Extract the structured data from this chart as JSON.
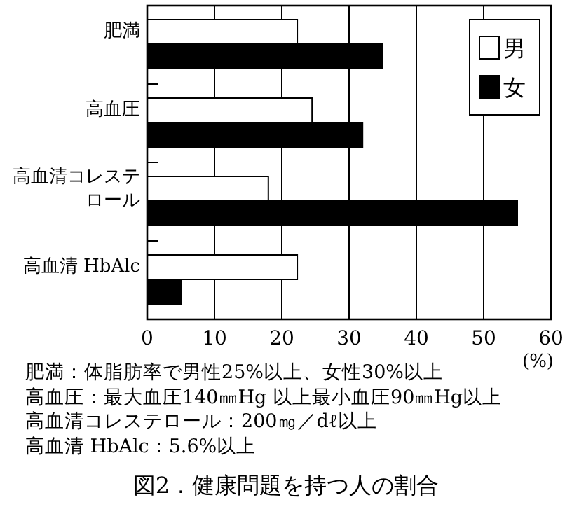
{
  "chart_data": {
    "type": "bar",
    "orientation": "horizontal",
    "title": "図2．健康問題を持つ人の割合",
    "xlabel": "(%)",
    "categories": [
      "肥満",
      "高血圧",
      "高血清コレステロール",
      "高血清 HbAlc"
    ],
    "series": [
      {
        "name": "男",
        "color": "#ffffff",
        "values": [
          22.3,
          24.5,
          18,
          22.3
        ]
      },
      {
        "name": "女",
        "color": "#000000",
        "values": [
          35,
          32,
          55,
          5
        ]
      }
    ],
    "xlim": [
      0,
      60
    ],
    "xticks": [
      0,
      10,
      20,
      30,
      40,
      50,
      60
    ],
    "grid": "x",
    "legend": "top right",
    "annotations": [
      "肥満：体脂肪率で男性25%以上、女性30%以上",
      "高血圧：最大血圧140㎜Hg 以上最小血圧90㎜Hg以上",
      "高血清コレステロール：200㎎／dℓ以上",
      "高血清 HbAlc：5.6%以上"
    ]
  }
}
